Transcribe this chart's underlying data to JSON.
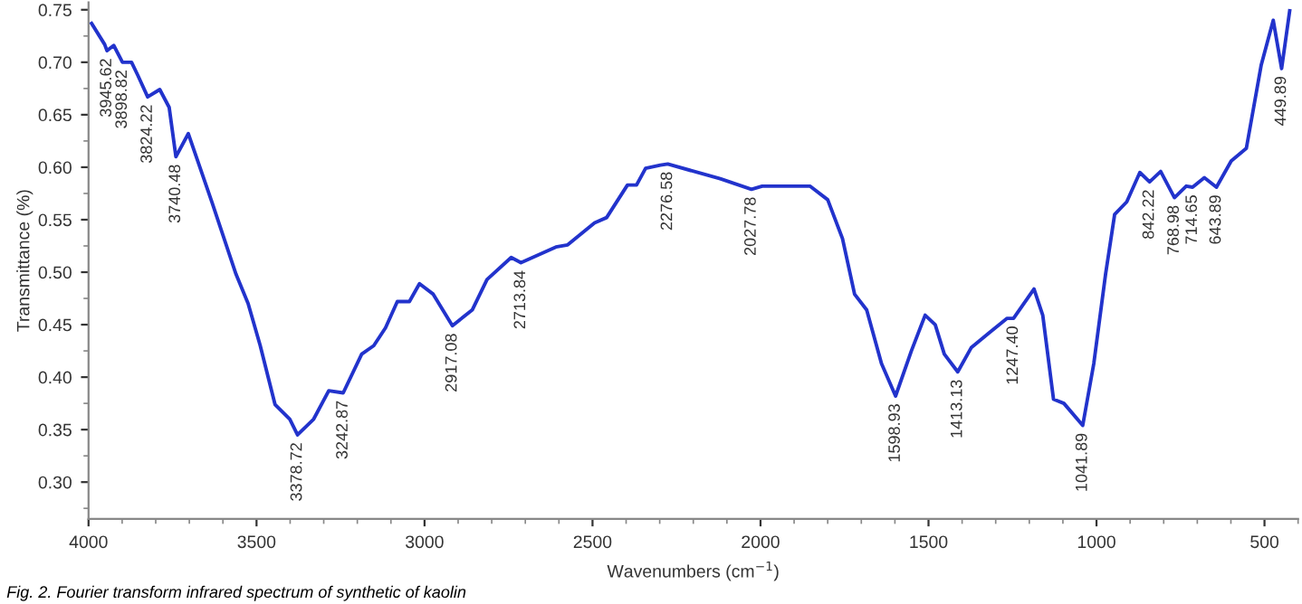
{
  "chart_data": {
    "type": "line",
    "xlabel": "Wavenumbers (cm$^{−1}$)",
    "ylabel": "Transmittance (%)",
    "x": [
      3991,
      3952,
      3945,
      3925,
      3899,
      3872,
      3854,
      3824,
      3788,
      3760,
      3740,
      3703,
      3632,
      3561,
      3525,
      3489,
      3445,
      3401,
      3378,
      3330,
      3285,
      3242,
      3187,
      3151,
      3116,
      3081,
      3045,
      3015,
      2974,
      2917,
      2858,
      2814,
      2742,
      2713,
      2609,
      2574,
      2494,
      2458,
      2396,
      2369,
      2342,
      2298,
      2276,
      2120,
      2027,
      1995,
      1853,
      1800,
      1756,
      1720,
      1684,
      1640,
      1598,
      1551,
      1510,
      1480,
      1453,
      1413,
      1373,
      1320,
      1266,
      1247,
      1186,
      1160,
      1128,
      1097,
      1041,
      1008,
      973,
      946,
      910,
      871,
      842,
      809,
      768,
      733,
      714,
      679,
      643,
      599,
      554,
      510,
      474,
      449,
      425
    ],
    "series": [
      {
        "color": "#2233cc",
        "values": [
          0.737,
          0.717,
          0.711,
          0.716,
          0.7,
          0.7,
          0.688,
          0.667,
          0.674,
          0.657,
          0.61,
          0.632,
          0.566,
          0.498,
          0.47,
          0.43,
          0.374,
          0.36,
          0.345,
          0.36,
          0.387,
          0.385,
          0.422,
          0.43,
          0.447,
          0.472,
          0.472,
          0.489,
          0.479,
          0.449,
          0.464,
          0.493,
          0.514,
          0.509,
          0.524,
          0.526,
          0.547,
          0.552,
          0.583,
          0.583,
          0.599,
          0.602,
          0.603,
          0.589,
          0.579,
          0.582,
          0.582,
          0.569,
          0.532,
          0.479,
          0.464,
          0.413,
          0.382,
          0.425,
          0.459,
          0.45,
          0.422,
          0.405,
          0.428,
          0.442,
          0.456,
          0.456,
          0.484,
          0.459,
          0.379,
          0.375,
          0.354,
          0.413,
          0.498,
          0.555,
          0.567,
          0.595,
          0.586,
          0.596,
          0.571,
          0.582,
          0.581,
          0.59,
          0.581,
          0.606,
          0.618,
          0.697,
          0.74,
          0.694,
          0.749
        ]
      }
    ],
    "xlim": [
      4000,
      400
    ],
    "xticks": [
      4000,
      3500,
      3000,
      2500,
      2000,
      1500,
      1000,
      500
    ],
    "ylim": [
      0.265,
      0.757
    ],
    "yticks": [
      {
        "value": 0.3,
        "label": "0.30"
      },
      {
        "value": 0.35,
        "label": "0.35"
      },
      {
        "value": 0.4,
        "label": "0.40"
      },
      {
        "value": 0.45,
        "label": "0.45"
      },
      {
        "value": 0.5,
        "label": "0.50"
      },
      {
        "value": 0.55,
        "label": "0.55"
      },
      {
        "value": 0.6,
        "label": "0.60"
      },
      {
        "value": 0.65,
        "label": "0.65"
      },
      {
        "value": 0.7,
        "label": "0.70"
      },
      {
        "value": 0.75,
        "label": "0.75"
      }
    ],
    "grid": false,
    "legend": false,
    "annotations": [
      {
        "text": "3945.62",
        "x": 3945,
        "y": 0.711
      },
      {
        "text": "3898.82",
        "x": 3899,
        "y": 0.7
      },
      {
        "text": "3824.22",
        "x": 3824,
        "y": 0.667
      },
      {
        "text": "3740.48",
        "x": 3740,
        "y": 0.61
      },
      {
        "text": "3378.72",
        "x": 3378,
        "y": 0.345
      },
      {
        "text": "3242.87",
        "x": 3242,
        "y": 0.385
      },
      {
        "text": "2917.08",
        "x": 2917,
        "y": 0.449
      },
      {
        "text": "2713.84",
        "x": 2713,
        "y": 0.509
      },
      {
        "text": "2276.58",
        "x": 2276,
        "y": 0.603
      },
      {
        "text": "2027.78",
        "x": 2027,
        "y": 0.579
      },
      {
        "text": "1598.93",
        "x": 1598,
        "y": 0.382
      },
      {
        "text": "1413.13",
        "x": 1413,
        "y": 0.405
      },
      {
        "text": "1247.40",
        "x": 1247,
        "y": 0.456
      },
      {
        "text": "1041.89",
        "x": 1041,
        "y": 0.354
      },
      {
        "text": "842.22",
        "x": 842,
        "y": 0.586
      },
      {
        "text": "768.98",
        "x": 768,
        "y": 0.571
      },
      {
        "text": "714.65",
        "x": 714,
        "y": 0.581
      },
      {
        "text": "643.89",
        "x": 643,
        "y": 0.581
      },
      {
        "text": "449.89",
        "x": 449,
        "y": 0.694
      },
      "Fig. 2. Fourier transform infrared spectrum of synthetic of kaolin"
    ]
  }
}
